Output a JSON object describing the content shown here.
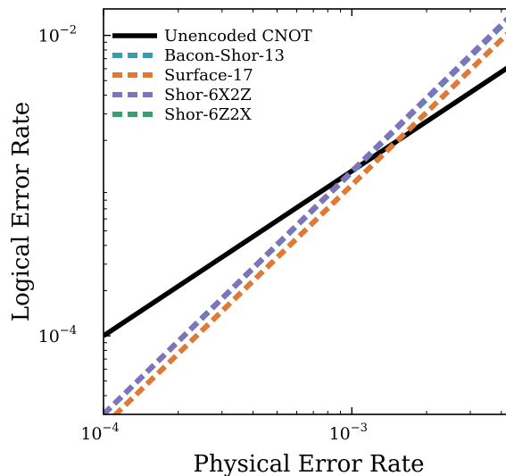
{
  "chart_data": {
    "type": "line",
    "xlabel": "Physical Error Rate",
    "ylabel": "Logical Error Rate",
    "xscale": "log",
    "yscale": "log",
    "xlim": [
      0.0001,
      0.0045
    ],
    "ylim": [
      3e-05,
      0.015
    ],
    "grid": false,
    "legend_position": "top-left",
    "x_ticks": [
      {
        "value": 0.0001,
        "base": "10",
        "exp": "−4"
      },
      {
        "value": 0.001,
        "base": "10",
        "exp": "−3"
      }
    ],
    "y_ticks": [
      {
        "value": 0.0001,
        "base": "10",
        "exp": "−4"
      },
      {
        "value": 0.01,
        "base": "10",
        "exp": "−2"
      }
    ],
    "series": [
      {
        "name": "Unencoded CNOT",
        "style": "solid",
        "color": "#000000",
        "x": [
          0.0001,
          0.0045
        ],
        "y": [
          0.0001,
          0.0065
        ]
      },
      {
        "name": "Bacon-Shor-13",
        "style": "dashed",
        "color": "#3a9ab0",
        "x": [
          0.0001,
          0.0045
        ],
        "y": [
          3e-05,
          0.014
        ]
      },
      {
        "name": "Surface-17",
        "style": "dashed",
        "color": "#de7a38",
        "x": [
          0.0001,
          0.0045
        ],
        "y": [
          2.5e-05,
          0.0113
        ]
      },
      {
        "name": "Shor-6X2Z",
        "style": "dashed",
        "color": "#8073bd",
        "x": [
          0.0001,
          0.0045
        ],
        "y": [
          3e-05,
          0.0142
        ]
      },
      {
        "name": "Shor-6Z2X",
        "style": "dashed",
        "color": "#389e6b",
        "x": [
          0.0001,
          0.0045
        ],
        "y": [
          3e-05,
          0.0139
        ]
      }
    ]
  }
}
